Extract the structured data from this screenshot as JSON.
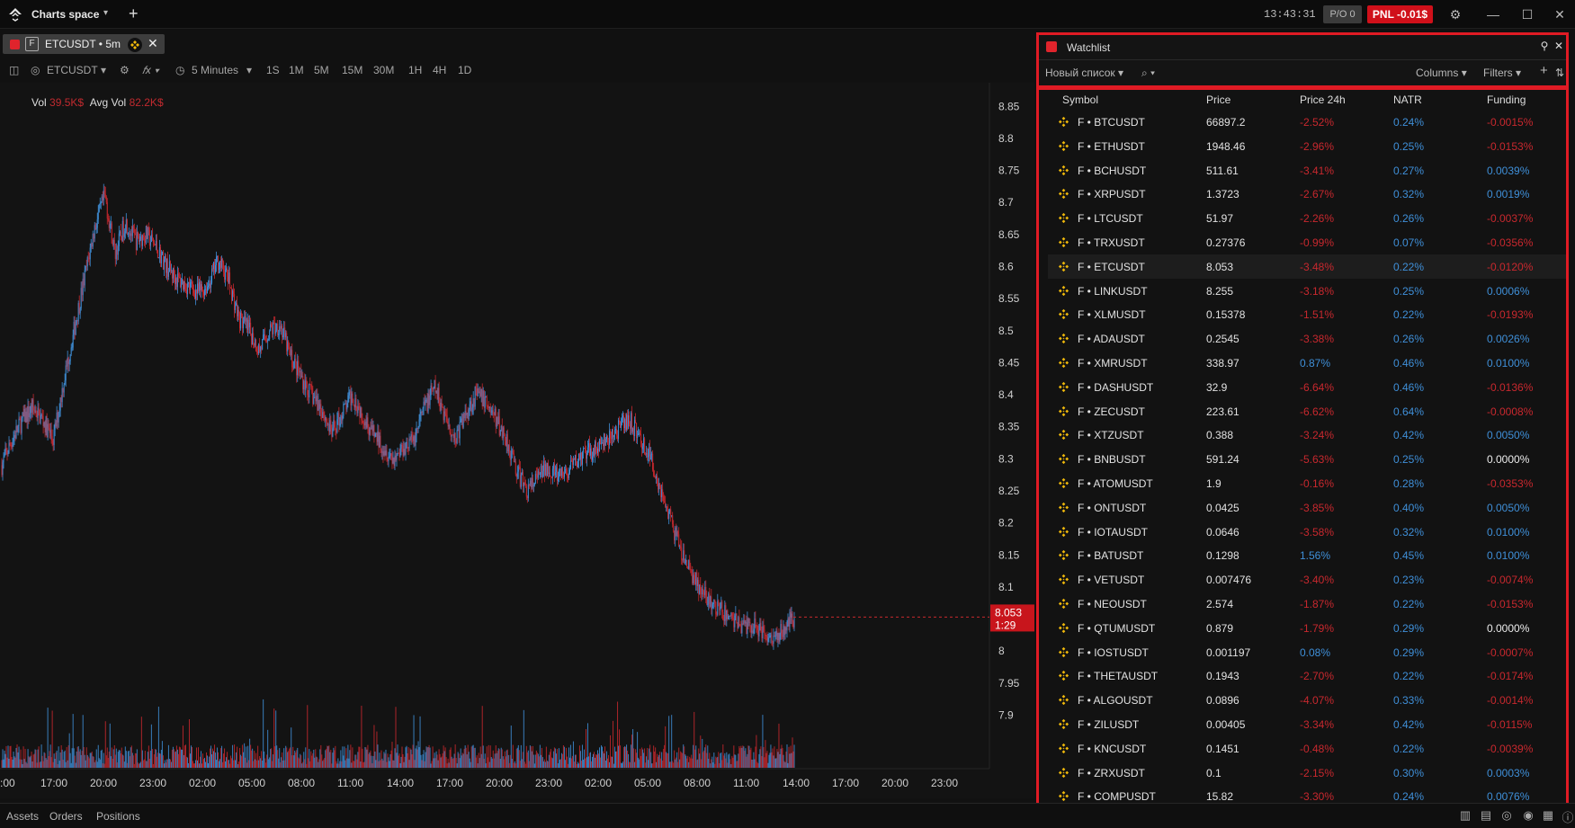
{
  "titlebar": {
    "app_name": "Charts space",
    "clock": "13:43:31",
    "po_label": "P/O 0",
    "pnl_label": "PNL -0.01$",
    "pnl_color": "#d0101a"
  },
  "chart_tab": {
    "title": "ETCUSDT • 5m",
    "market_badge": "F"
  },
  "chart_toolbar": {
    "symbol": "ETCUSDT",
    "interval": "5 Minutes",
    "timeframes": [
      "1S",
      "1M",
      "5M",
      "15M",
      "30M",
      "1H",
      "4H",
      "1D"
    ]
  },
  "volume_info": {
    "vol_label": "Vol",
    "vol_value": "39.5K$",
    "avg_label": "Avg Vol",
    "avg_value": "82.2K$"
  },
  "chart_data": {
    "type": "candlestick",
    "symbol": "ETCUSDT",
    "interval": "5m",
    "y_ticks": [
      "8.85",
      "8.8",
      "8.75",
      "8.7",
      "8.65",
      "8.6",
      "8.55",
      "8.5",
      "8.45",
      "8.4",
      "8.35",
      "8.3",
      "8.25",
      "8.2",
      "8.15",
      "8.1",
      "8",
      "7.95",
      "7.9"
    ],
    "x_ticks": [
      ":00",
      "17:00",
      "20:00",
      "23:00",
      "02:00",
      "05:00",
      "08:00",
      "11:00",
      "14:00",
      "17:00",
      "20:00",
      "23:00",
      "02:00",
      "05:00",
      "08:00",
      "11:00",
      "14:00",
      "17:00",
      "20:00",
      "23:00"
    ],
    "ylim": [
      7.86,
      8.87
    ],
    "approx_close_path": [
      [
        0,
        8.29
      ],
      [
        2,
        8.33
      ],
      [
        4,
        8.36
      ],
      [
        6,
        8.38
      ],
      [
        8,
        8.36
      ],
      [
        10,
        8.33
      ],
      [
        12,
        8.42
      ],
      [
        14,
        8.5
      ],
      [
        16,
        8.58
      ],
      [
        18,
        8.66
      ],
      [
        20,
        8.71
      ],
      [
        22,
        8.62
      ],
      [
        24,
        8.67
      ],
      [
        26,
        8.64
      ],
      [
        28,
        8.65
      ],
      [
        30,
        8.63
      ],
      [
        32,
        8.6
      ],
      [
        34,
        8.58
      ],
      [
        36,
        8.57
      ],
      [
        38,
        8.56
      ],
      [
        40,
        8.57
      ],
      [
        42,
        8.61
      ],
      [
        44,
        8.58
      ],
      [
        46,
        8.52
      ],
      [
        48,
        8.5
      ],
      [
        50,
        8.47
      ],
      [
        52,
        8.5
      ],
      [
        54,
        8.51
      ],
      [
        56,
        8.46
      ],
      [
        58,
        8.43
      ],
      [
        60,
        8.4
      ],
      [
        62,
        8.38
      ],
      [
        64,
        8.34
      ],
      [
        66,
        8.37
      ],
      [
        68,
        8.4
      ],
      [
        70,
        8.37
      ],
      [
        72,
        8.34
      ],
      [
        74,
        8.32
      ],
      [
        76,
        8.3
      ],
      [
        78,
        8.32
      ],
      [
        80,
        8.33
      ],
      [
        82,
        8.38
      ],
      [
        84,
        8.41
      ],
      [
        86,
        8.37
      ],
      [
        88,
        8.33
      ],
      [
        90,
        8.37
      ],
      [
        92,
        8.4
      ],
      [
        94,
        8.39
      ],
      [
        96,
        8.36
      ],
      [
        98,
        8.33
      ],
      [
        100,
        8.28
      ],
      [
        102,
        8.25
      ],
      [
        104,
        8.27
      ],
      [
        106,
        8.29
      ],
      [
        108,
        8.27
      ],
      [
        110,
        8.28
      ],
      [
        112,
        8.3
      ],
      [
        114,
        8.31
      ],
      [
        116,
        8.32
      ],
      [
        118,
        8.33
      ],
      [
        120,
        8.35
      ],
      [
        122,
        8.36
      ],
      [
        124,
        8.33
      ],
      [
        126,
        8.3
      ],
      [
        128,
        8.25
      ],
      [
        130,
        8.2
      ],
      [
        132,
        8.15
      ],
      [
        134,
        8.12
      ],
      [
        136,
        8.09
      ],
      [
        138,
        8.07
      ],
      [
        140,
        8.06
      ],
      [
        142,
        8.05
      ],
      [
        144,
        8.04
      ],
      [
        146,
        8.04
      ],
      [
        148,
        8.03
      ],
      [
        150,
        8.02
      ],
      [
        152,
        8.04
      ],
      [
        154,
        8.053
      ]
    ],
    "last_price": "8.053",
    "countdown": "1:29"
  },
  "watchlist": {
    "title": "Watchlist",
    "list_name": "Новый список",
    "columns_label": "Columns",
    "filters_label": "Filters",
    "headers": [
      "Symbol",
      "Price",
      "Price 24h",
      "NATR",
      "Funding"
    ],
    "rows": [
      {
        "symbol": "F • BTCUSDT",
        "price": "66897.2",
        "change": "-2.52%",
        "natr": "0.24%",
        "funding": "-0.0015%"
      },
      {
        "symbol": "F • ETHUSDT",
        "price": "1948.46",
        "change": "-2.96%",
        "natr": "0.25%",
        "funding": "-0.0153%"
      },
      {
        "symbol": "F • BCHUSDT",
        "price": "511.61",
        "change": "-3.41%",
        "natr": "0.27%",
        "funding": "0.0039%"
      },
      {
        "symbol": "F • XRPUSDT",
        "price": "1.3723",
        "change": "-2.67%",
        "natr": "0.32%",
        "funding": "0.0019%"
      },
      {
        "symbol": "F • LTCUSDT",
        "price": "51.97",
        "change": "-2.26%",
        "natr": "0.26%",
        "funding": "-0.0037%"
      },
      {
        "symbol": "F • TRXUSDT",
        "price": "0.27376",
        "change": "-0.99%",
        "natr": "0.07%",
        "funding": "-0.0356%"
      },
      {
        "symbol": "F • ETCUSDT",
        "price": "8.053",
        "change": "-3.48%",
        "natr": "0.22%",
        "funding": "-0.0120%"
      },
      {
        "symbol": "F • LINKUSDT",
        "price": "8.255",
        "change": "-3.18%",
        "natr": "0.25%",
        "funding": "0.0006%"
      },
      {
        "symbol": "F • XLMUSDT",
        "price": "0.15378",
        "change": "-1.51%",
        "natr": "0.22%",
        "funding": "-0.0193%"
      },
      {
        "symbol": "F • ADAUSDT",
        "price": "0.2545",
        "change": "-3.38%",
        "natr": "0.26%",
        "funding": "0.0026%"
      },
      {
        "symbol": "F • XMRUSDT",
        "price": "338.97",
        "change": "0.87%",
        "natr": "0.46%",
        "funding": "0.0100%"
      },
      {
        "symbol": "F • DASHUSDT",
        "price": "32.9",
        "change": "-6.64%",
        "natr": "0.46%",
        "funding": "-0.0136%"
      },
      {
        "symbol": "F • ZECUSDT",
        "price": "223.61",
        "change": "-6.62%",
        "natr": "0.64%",
        "funding": "-0.0008%"
      },
      {
        "symbol": "F • XTZUSDT",
        "price": "0.388",
        "change": "-3.24%",
        "natr": "0.42%",
        "funding": "0.0050%"
      },
      {
        "symbol": "F • BNBUSDT",
        "price": "591.24",
        "change": "-5.63%",
        "natr": "0.25%",
        "funding": "0.0000%"
      },
      {
        "symbol": "F • ATOMUSDT",
        "price": "1.9",
        "change": "-0.16%",
        "natr": "0.28%",
        "funding": "-0.0353%"
      },
      {
        "symbol": "F • ONTUSDT",
        "price": "0.0425",
        "change": "-3.85%",
        "natr": "0.40%",
        "funding": "0.0050%"
      },
      {
        "symbol": "F • IOTAUSDT",
        "price": "0.0646",
        "change": "-3.58%",
        "natr": "0.32%",
        "funding": "0.0100%"
      },
      {
        "symbol": "F • BATUSDT",
        "price": "0.1298",
        "change": "1.56%",
        "natr": "0.45%",
        "funding": "0.0100%"
      },
      {
        "symbol": "F • VETUSDT",
        "price": "0.007476",
        "change": "-3.40%",
        "natr": "0.23%",
        "funding": "-0.0074%"
      },
      {
        "symbol": "F • NEOUSDT",
        "price": "2.574",
        "change": "-1.87%",
        "natr": "0.22%",
        "funding": "-0.0153%"
      },
      {
        "symbol": "F • QTUMUSDT",
        "price": "0.879",
        "change": "-1.79%",
        "natr": "0.29%",
        "funding": "0.0000%"
      },
      {
        "symbol": "F • IOSTUSDT",
        "price": "0.001197",
        "change": "0.08%",
        "natr": "0.29%",
        "funding": "-0.0007%"
      },
      {
        "symbol": "F • THETAUSDT",
        "price": "0.1943",
        "change": "-2.70%",
        "natr": "0.22%",
        "funding": "-0.0174%"
      },
      {
        "symbol": "F • ALGOUSDT",
        "price": "0.0896",
        "change": "-4.07%",
        "natr": "0.33%",
        "funding": "-0.0014%"
      },
      {
        "symbol": "F • ZILUSDT",
        "price": "0.00405",
        "change": "-3.34%",
        "natr": "0.42%",
        "funding": "-0.0115%"
      },
      {
        "symbol": "F • KNCUSDT",
        "price": "0.1451",
        "change": "-0.48%",
        "natr": "0.22%",
        "funding": "-0.0039%"
      },
      {
        "symbol": "F • ZRXUSDT",
        "price": "0.1",
        "change": "-2.15%",
        "natr": "0.30%",
        "funding": "0.0003%"
      },
      {
        "symbol": "F • COMPUSDT",
        "price": "15.82",
        "change": "-3.30%",
        "natr": "0.24%",
        "funding": "0.0076%"
      }
    ],
    "highlight_symbol": "F • ETCUSDT"
  },
  "bottombar": {
    "tabs": [
      "Assets",
      "Orders",
      "Positions"
    ]
  },
  "colors": {
    "down": "#c8282e",
    "up": "#3f8fd8",
    "accent_red": "#e01b24",
    "binance_yellow": "#f0b90b"
  }
}
